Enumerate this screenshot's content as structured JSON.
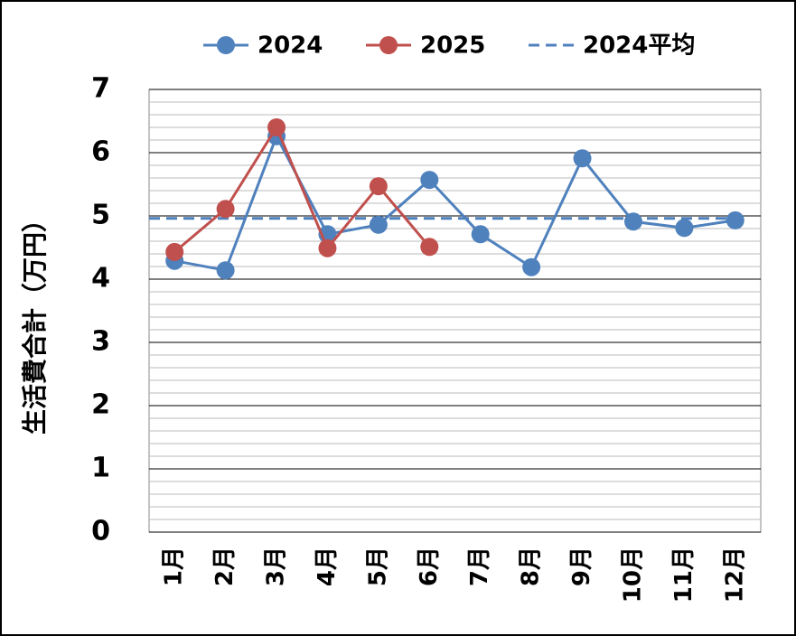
{
  "chart_data": {
    "type": "line",
    "y_label": "生活費合計（万円）",
    "categories": [
      "1月",
      "2月",
      "3月",
      "4月",
      "5月",
      "6月",
      "7月",
      "8月",
      "9月",
      "10月",
      "11月",
      "12月"
    ],
    "series": [
      {
        "name": "2024",
        "color": "#4f81bd",
        "values": [
          4.29,
          4.14,
          6.26,
          4.71,
          4.86,
          5.57,
          4.71,
          4.19,
          5.91,
          4.91,
          4.81,
          4.93
        ]
      },
      {
        "name": "2025",
        "color": "#c0504d",
        "values": [
          4.43,
          5.11,
          6.4,
          4.49,
          5.47,
          4.51,
          null,
          null,
          null,
          null,
          null,
          null
        ]
      }
    ],
    "average": {
      "name": "2024平均",
      "color": "#4f81bd",
      "value": 4.96,
      "dashed": true
    },
    "ylim": [
      0,
      7
    ],
    "yticks": [
      0,
      1,
      2,
      3,
      4,
      5,
      6,
      7
    ],
    "grid": true,
    "minor_grid": 0.2,
    "legend": "top"
  }
}
